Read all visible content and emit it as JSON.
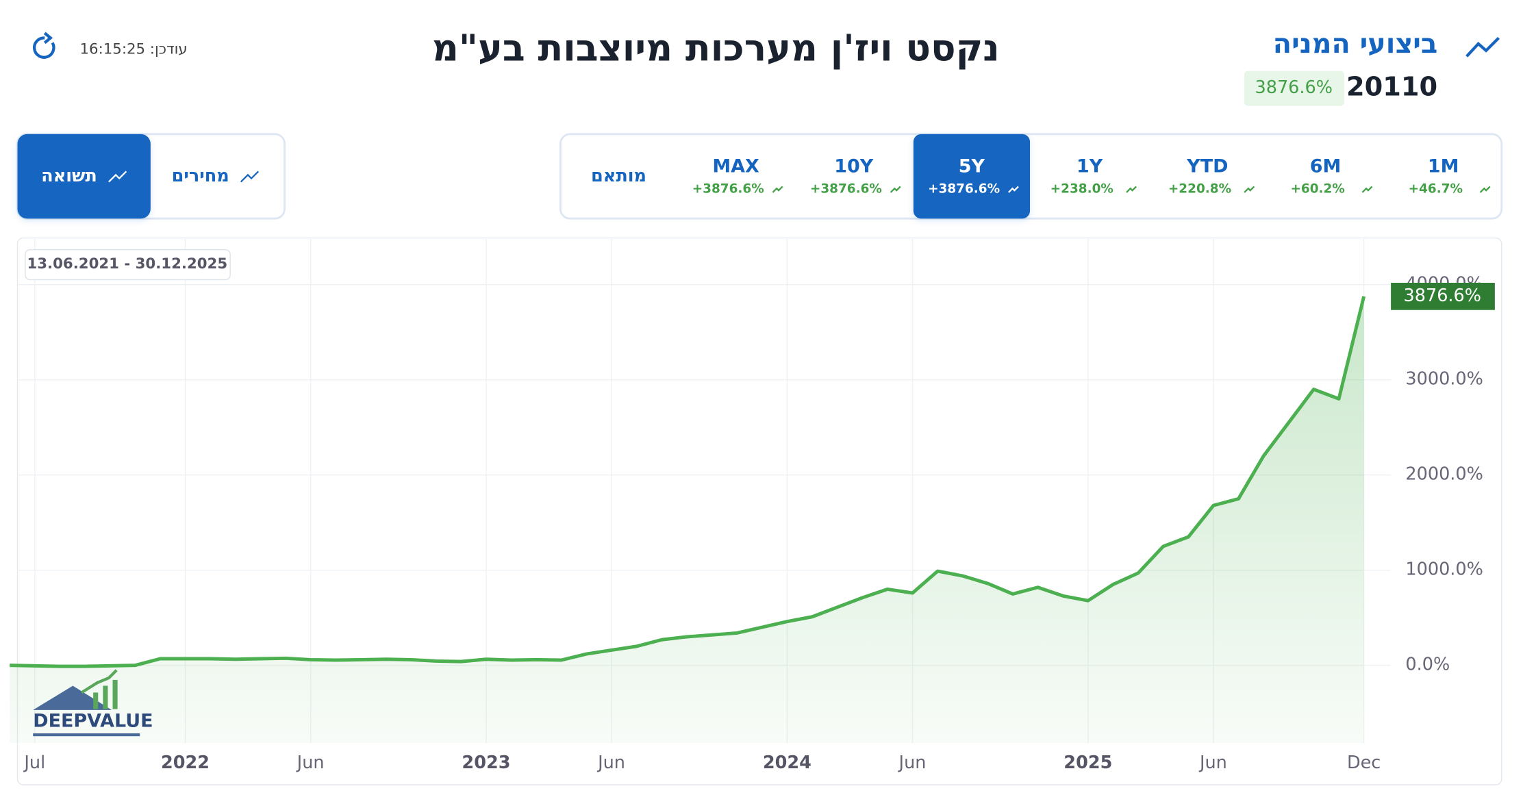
{
  "header": {
    "title": "נקסט ויז'ן מערכות מיוצבות בע\"מ",
    "section_title": "ביצועי המניה",
    "price": "20110",
    "change": "3876.6%",
    "updated": "עודכן: 16:15:25"
  },
  "view_toggle": [
    {
      "label": "תשואה",
      "active": true
    },
    {
      "label": "מחירים",
      "active": false
    }
  ],
  "ranges": [
    {
      "label": "1M",
      "change": "+46.7%",
      "active": false
    },
    {
      "label": "6M",
      "change": "+60.2%",
      "active": false
    },
    {
      "label": "YTD",
      "change": "+220.8%",
      "active": false
    },
    {
      "label": "1Y",
      "change": "+238.0%",
      "active": false
    },
    {
      "label": "5Y",
      "change": "+3876.6%",
      "active": true
    },
    {
      "label": "10Y",
      "change": "+3876.6%",
      "active": false
    },
    {
      "label": "MAX",
      "change": "+3876.6%",
      "active": false
    }
  ],
  "custom_range_label": "מותאם",
  "date_range": "13.06.2021 - 30.12.2025",
  "logo": "DEEPVALUE",
  "chart_data": {
    "type": "line",
    "x": [
      "2021-06",
      "2021-07",
      "2021-08",
      "2021-09",
      "2021-10",
      "2021-11",
      "2021-12",
      "2022-01",
      "2022-02",
      "2022-03",
      "2022-04",
      "2022-05",
      "2022-06",
      "2022-07",
      "2022-08",
      "2022-09",
      "2022-10",
      "2022-11",
      "2022-12",
      "2023-01",
      "2023-02",
      "2023-03",
      "2023-04",
      "2023-05",
      "2023-06",
      "2023-07",
      "2023-08",
      "2023-09",
      "2023-10",
      "2023-11",
      "2023-12",
      "2024-01",
      "2024-02",
      "2024-03",
      "2024-04",
      "2024-05",
      "2024-06",
      "2024-07",
      "2024-08",
      "2024-09",
      "2024-10",
      "2024-11",
      "2024-12",
      "2025-01",
      "2025-02",
      "2025-03",
      "2025-04",
      "2025-05",
      "2025-06",
      "2025-07",
      "2025-08",
      "2025-09",
      "2025-10",
      "2025-11",
      "2025-12"
    ],
    "series": [
      {
        "name": "תשואה",
        "color": "#4caf50",
        "values": [
          0,
          -5,
          -10,
          -10,
          -5,
          0,
          70,
          70,
          70,
          65,
          70,
          75,
          60,
          55,
          60,
          65,
          60,
          45,
          40,
          65,
          55,
          60,
          55,
          120,
          160,
          200,
          270,
          300,
          320,
          340,
          400,
          460,
          510,
          610,
          710,
          800,
          760,
          990,
          940,
          860,
          750,
          820,
          730,
          680,
          850,
          970,
          1250,
          1350,
          1680,
          1750,
          2200,
          2550,
          2900,
          2800,
          3876.6
        ]
      }
    ],
    "last_value_label": "3876.6%",
    "xlim": [
      "2021-06",
      "2026-01"
    ],
    "xticks": [
      {
        "value": "2021-07",
        "label": "Jul"
      },
      {
        "value": "2022-01",
        "label": "2022"
      },
      {
        "value": "2022-06",
        "label": "Jun"
      },
      {
        "value": "2023-01",
        "label": "2023"
      },
      {
        "value": "2023-06",
        "label": "Jun"
      },
      {
        "value": "2024-01",
        "label": "2024"
      },
      {
        "value": "2024-06",
        "label": "Jun"
      },
      {
        "value": "2025-01",
        "label": "2025"
      },
      {
        "value": "2025-06",
        "label": "Jun"
      },
      {
        "value": "2025-12",
        "label": "Dec"
      }
    ],
    "ylim": [
      -816,
      4490
    ],
    "yticks": [
      {
        "value": 0,
        "label": "0.0%"
      },
      {
        "value": 1000,
        "label": "1000.0%"
      },
      {
        "value": 2000,
        "label": "2000.0%"
      },
      {
        "value": 3000,
        "label": "3000.0%"
      },
      {
        "value": 4000,
        "label": "4000.0%"
      }
    ],
    "grid": true
  }
}
